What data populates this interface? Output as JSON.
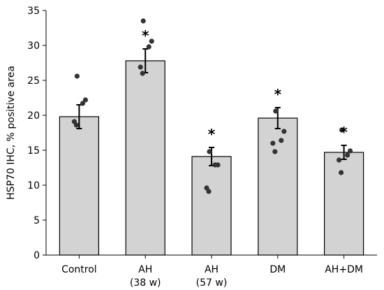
{
  "chart_data": {
    "type": "bar",
    "title": "",
    "xlabel": "",
    "ylabel": "HSP70 IHC, % positive area",
    "ylim": [
      0,
      35
    ],
    "yticks": [
      0,
      5,
      10,
      15,
      20,
      25,
      30,
      35
    ],
    "grid": false,
    "categories": [
      [
        "Control"
      ],
      [
        "AH",
        "(38 w)"
      ],
      [
        "AH",
        "(57 w)"
      ],
      [
        "DM"
      ],
      [
        "AH+DM"
      ]
    ],
    "values": [
      19.8,
      27.8,
      14.1,
      19.6,
      14.7
    ],
    "errors": [
      1.7,
      1.7,
      1.3,
      1.5,
      1.0
    ],
    "significance": [
      "",
      "*",
      "*",
      "*",
      "*"
    ],
    "points": [
      [
        25.6,
        22.2,
        21.7,
        19.1,
        18.6
      ],
      [
        33.5,
        30.6,
        29.8,
        26.9,
        26.0
      ],
      [
        14.8,
        12.9,
        12.9,
        9.6,
        9.1
      ],
      [
        20.6,
        17.7,
        16.4,
        16.0,
        14.8
      ],
      [
        17.9,
        14.9,
        14.3,
        13.6,
        11.8
      ]
    ],
    "colors": {
      "bar_fill": "#d3d3d3",
      "bar_edge": "#000000",
      "point": "#333333"
    }
  }
}
